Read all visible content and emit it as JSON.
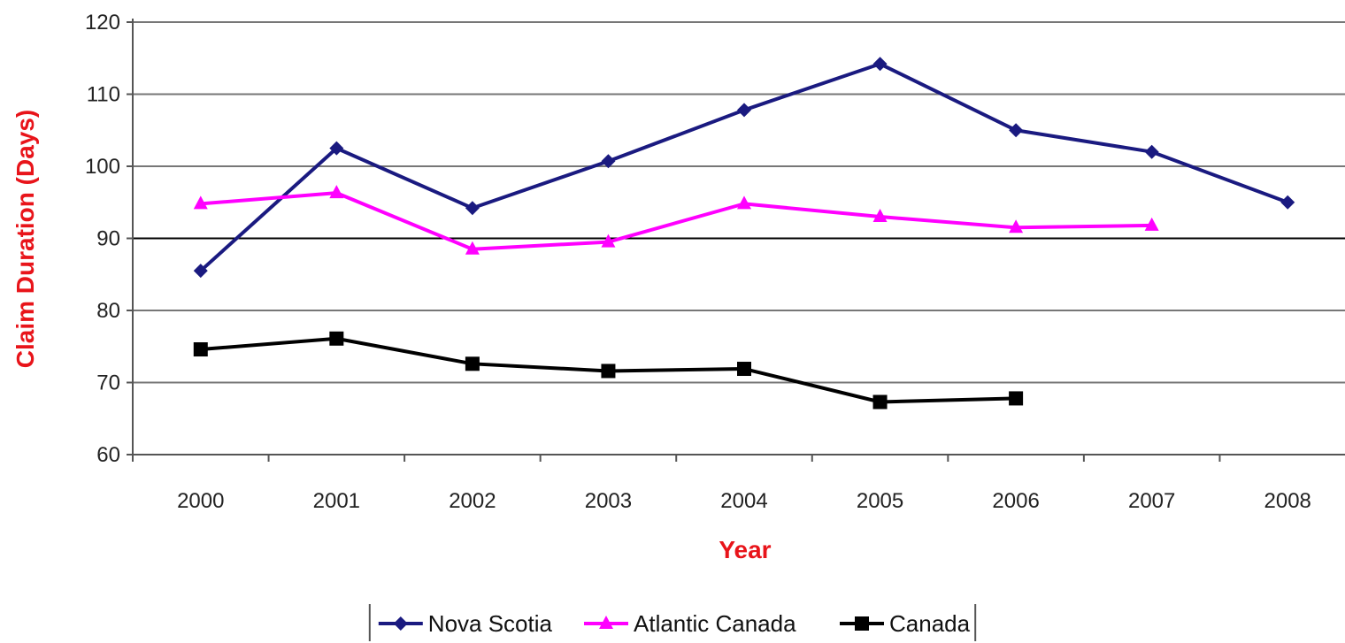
{
  "chart_data": {
    "type": "line",
    "title": "",
    "xlabel": "Year",
    "ylabel": "Claim Duration (Days)",
    "categories": [
      "2000",
      "2001",
      "2002",
      "2003",
      "2004",
      "2005",
      "2006",
      "2007",
      "2008"
    ],
    "ylim": [
      60,
      120
    ],
    "yticks": [
      "60",
      "70",
      "80",
      "90",
      "100",
      "110",
      "120"
    ],
    "grid": true,
    "legend_position": "bottom",
    "series": [
      {
        "name": "Nova Scotia",
        "color": "#1a1a80",
        "marker": "diamond",
        "values": [
          85.5,
          102.5,
          94.2,
          100.7,
          107.8,
          114.2,
          105,
          102,
          95
        ]
      },
      {
        "name": "Atlantic Canada",
        "color": "#ff00ff",
        "marker": "triangle",
        "values": [
          94.8,
          96.3,
          88.5,
          89.5,
          94.8,
          93,
          91.5,
          91.8,
          null
        ]
      },
      {
        "name": "Canada",
        "color": "#000000",
        "marker": "square",
        "values": [
          74.6,
          76.1,
          72.6,
          71.6,
          71.9,
          67.3,
          67.8,
          null,
          null
        ]
      }
    ],
    "axis_title_color": "#e8141a"
  }
}
